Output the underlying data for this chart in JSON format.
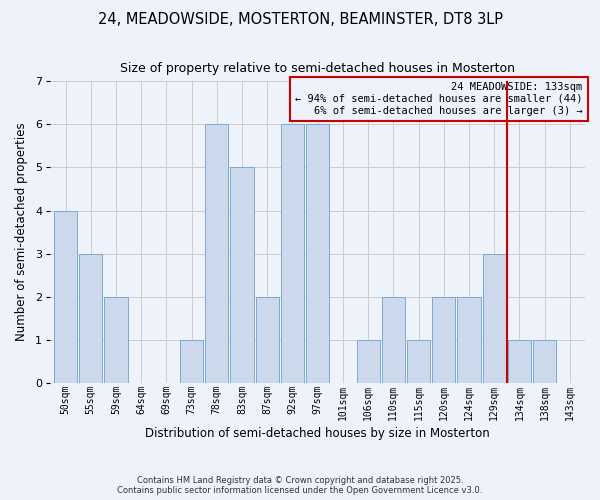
{
  "title": "24, MEADOWSIDE, MOSTERTON, BEAMINSTER, DT8 3LP",
  "subtitle": "Size of property relative to semi-detached houses in Mosterton",
  "xlabel": "Distribution of semi-detached houses by size in Mosterton",
  "ylabel": "Number of semi-detached properties",
  "categories": [
    "50sqm",
    "55sqm",
    "59sqm",
    "64sqm",
    "69sqm",
    "73sqm",
    "78sqm",
    "83sqm",
    "87sqm",
    "92sqm",
    "97sqm",
    "101sqm",
    "106sqm",
    "110sqm",
    "115sqm",
    "120sqm",
    "124sqm",
    "129sqm",
    "134sqm",
    "138sqm",
    "143sqm"
  ],
  "values": [
    4,
    3,
    2,
    0,
    0,
    1,
    6,
    5,
    2,
    6,
    6,
    0,
    1,
    2,
    1,
    2,
    2,
    3,
    1,
    1,
    0
  ],
  "bar_color": "#ccd9ed",
  "bar_edge_color": "#7aaad0",
  "highlight_line_color": "#cc0000",
  "annotation_title": "24 MEADOWSIDE: 133sqm",
  "annotation_line1": "← 94% of semi-detached houses are smaller (44)",
  "annotation_line2": "6% of semi-detached houses are larger (3) →",
  "annotation_box_color": "#cc0000",
  "ylim": [
    0,
    7
  ],
  "footnote1": "Contains HM Land Registry data © Crown copyright and database right 2025.",
  "footnote2": "Contains public sector information licensed under the Open Government Licence v3.0.",
  "bg_color": "#eef2fa"
}
